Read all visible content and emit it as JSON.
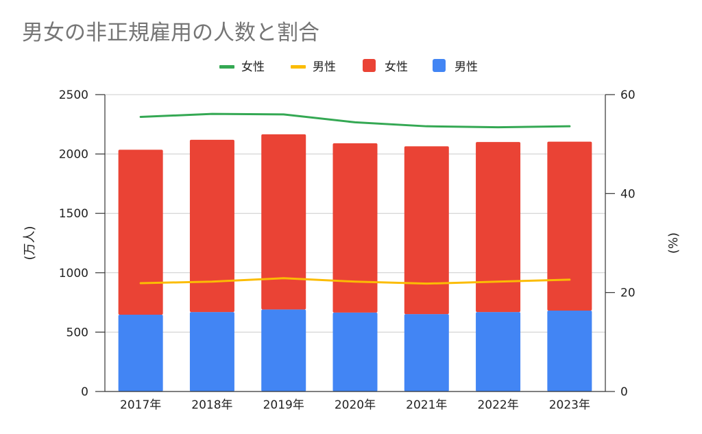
{
  "chart_data": {
    "type": "bar",
    "title": "男女の非正規雇用の人数と割合",
    "categories": [
      "2017年",
      "2018年",
      "2019年",
      "2020年",
      "2021年",
      "2022年",
      "2023年"
    ],
    "stacked": true,
    "series": [
      {
        "name": "男性",
        "kind": "bar",
        "axis": "left",
        "color": "#4285f4",
        "values": [
          647,
          669,
          691,
          665,
          652,
          669,
          681
        ]
      },
      {
        "name": "女性",
        "kind": "bar",
        "axis": "left",
        "color": "#ea4335",
        "values": [
          1389,
          1451,
          1475,
          1425,
          1413,
          1432,
          1423
        ]
      },
      {
        "name": "女性",
        "kind": "line",
        "axis": "right",
        "color": "#34a853",
        "values": [
          55.5,
          56.1,
          56.0,
          54.4,
          53.6,
          53.4,
          53.6
        ]
      },
      {
        "name": "男性",
        "kind": "line",
        "axis": "right",
        "color": "#fbbc04",
        "values": [
          21.9,
          22.2,
          22.9,
          22.2,
          21.8,
          22.2,
          22.6
        ]
      }
    ],
    "legend": {
      "position": "top",
      "items": [
        {
          "label": "女性",
          "type": "line",
          "color": "#34a853"
        },
        {
          "label": "男性",
          "type": "line",
          "color": "#fbbc04"
        },
        {
          "label": "女性",
          "type": "box",
          "color": "#ea4335"
        },
        {
          "label": "男性",
          "type": "box",
          "color": "#4285f4"
        }
      ]
    },
    "ylabel": "(万人)",
    "ylabel_right": "(%)",
    "ylim": [
      0,
      2500
    ],
    "yticks": [
      0,
      500,
      1000,
      1500,
      2000,
      2500
    ],
    "ylim_right": [
      0,
      60
    ],
    "yticks_right": [
      0,
      20,
      40,
      60
    ],
    "grid": true
  }
}
